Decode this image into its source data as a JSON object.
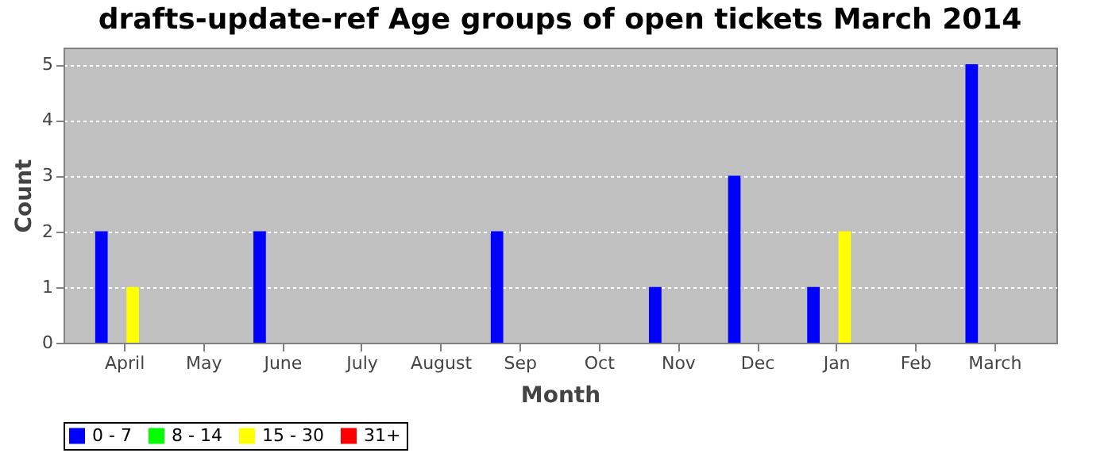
{
  "chart_data": {
    "type": "bar",
    "title": "drafts-update-ref Age groups of open tickets March 2014",
    "xlabel": "Month",
    "ylabel": "Count",
    "categories": [
      "April",
      "May",
      "June",
      "July",
      "August",
      "Sep",
      "Oct",
      "Nov",
      "Dec",
      "Jan",
      "Feb",
      "March"
    ],
    "series": [
      {
        "name": "0 - 7",
        "color": "#0000ff",
        "values": [
          2,
          0,
          2,
          0,
          0,
          2,
          0,
          1,
          3,
          1,
          0,
          5
        ]
      },
      {
        "name": "8 - 14",
        "color": "#00ff00",
        "values": [
          0,
          0,
          0,
          0,
          0,
          0,
          0,
          0,
          0,
          0,
          0,
          0
        ]
      },
      {
        "name": "15 - 30",
        "color": "#ffff00",
        "values": [
          1,
          0,
          0,
          0,
          0,
          0,
          0,
          0,
          0,
          2,
          0,
          0
        ]
      },
      {
        "name": "31+",
        "color": "#ff0000",
        "values": [
          0,
          0,
          0,
          0,
          0,
          0,
          0,
          0,
          0,
          0,
          0,
          0
        ]
      }
    ],
    "ylim": [
      0,
      5.3
    ],
    "yticks": [
      0,
      1,
      2,
      3,
      4,
      5
    ],
    "grid": "y",
    "legend": "bottom"
  }
}
